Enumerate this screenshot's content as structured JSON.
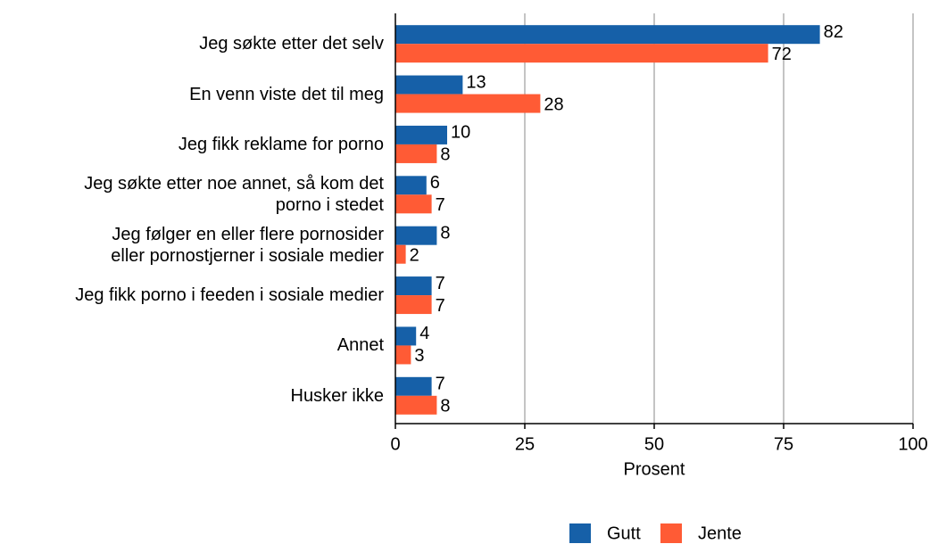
{
  "chart_data": {
    "type": "bar",
    "orientation": "horizontal",
    "x_label": "Prosent",
    "categories": [
      "Jeg søkte etter det selv",
      "En venn viste det til meg",
      "Jeg fikk reklame for porno",
      "Jeg søkte etter noe annet, så kom det\nporno i stedet",
      "Jeg følger en eller flere pornosider\neller pornostjerner i sosiale medier",
      "Jeg fikk porno i feeden i sosiale medier",
      "Annet",
      "Husker ikke"
    ],
    "series": [
      {
        "name": "Gutt",
        "color": "#1660a8",
        "values": [
          82,
          13,
          10,
          6,
          8,
          7,
          4,
          7
        ]
      },
      {
        "name": "Jente",
        "color": "#ff5b35",
        "values": [
          72,
          28,
          8,
          7,
          2,
          7,
          3,
          8
        ]
      }
    ],
    "xlim": [
      0,
      100
    ],
    "xticks": [
      0,
      25,
      50,
      75,
      100
    ],
    "grid": true,
    "legend": "bottom"
  }
}
